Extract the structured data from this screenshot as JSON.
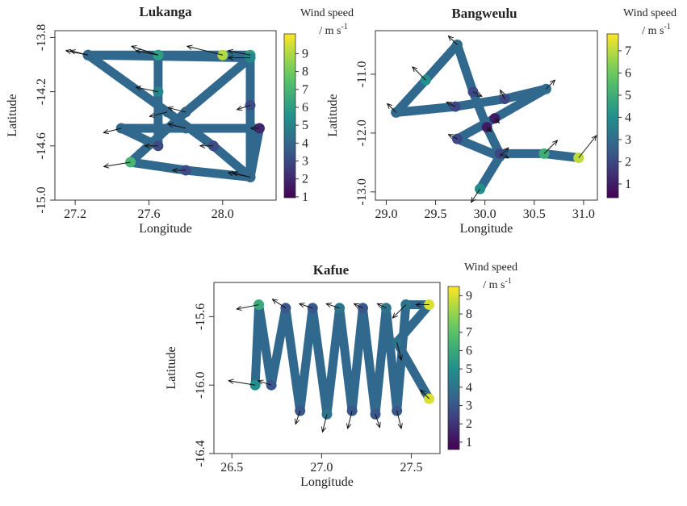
{
  "chart_data": [
    {
      "type": "scatter",
      "title": "Lukanga",
      "x_label": "Longitude",
      "y_label": "Latitude",
      "colormap": "viridis",
      "xlim": [
        27.09,
        28.29
      ],
      "ylim": [
        -15.0,
        -13.75
      ],
      "xticks": [
        27.2,
        27.6,
        {
          "value": 28,
          "label": "28.0"
        }
      ],
      "yticks": [
        -13.8,
        -14.2,
        -14.6,
        {
          "value": -15,
          "label": "-15.0"
        }
      ],
      "x": [
        27.27,
        27.65,
        28.0,
        28.15,
        28.15,
        28.15,
        27.8,
        27.5,
        27.8,
        28.15,
        27.27,
        27.7,
        27.95,
        28.15,
        28.2,
        27.8,
        27.45,
        27.65,
        27.65,
        27.65
      ],
      "y": [
        -13.93,
        -13.93,
        -13.93,
        -13.93,
        -14.3,
        -14.83,
        -14.78,
        -14.72,
        -14.35,
        -13.95,
        -13.93,
        -14.35,
        -14.6,
        -14.83,
        -14.47,
        -14.47,
        -14.47,
        -14.6,
        -14.2,
        -13.93
      ],
      "wind": [
        5,
        6,
        9,
        6,
        3,
        5,
        3,
        7,
        4,
        5,
        4,
        4,
        3,
        4,
        2,
        4,
        4,
        3,
        5,
        6
      ],
      "u": [
        -5,
        -5,
        -8,
        -5,
        -3,
        -5,
        -3,
        -6,
        -4,
        -5,
        -4,
        -4,
        -3,
        -4,
        -2,
        -4,
        -4,
        -3,
        -5,
        -6
      ],
      "v": [
        1,
        1,
        2,
        1,
        -1,
        1,
        0,
        -1,
        1,
        0,
        1,
        -1,
        0,
        1,
        0,
        1,
        -1,
        0,
        1,
        2
      ],
      "colorbar": {
        "label": "Wind speed",
        "unit": "/ m s",
        "unit_exponent": "-1",
        "lim": [
          0.95,
          10.1
        ],
        "ticks": [
          1,
          2,
          3,
          4,
          5,
          6,
          7,
          8,
          9
        ]
      }
    },
    {
      "type": "scatter",
      "title": "Bangweulu",
      "x_label": "Longitude",
      "y_label": "Latitude",
      "colormap": "viridis",
      "xlim": [
        28.89,
        31.14
      ],
      "ylim": [
        -13.14,
        -10.26
      ],
      "xticks": [
        {
          "value": 29,
          "label": "29.0"
        },
        29.5,
        {
          "value": 30,
          "label": "30.0"
        },
        30.5,
        {
          "value": 31,
          "label": "31.0"
        }
      ],
      "yticks": [
        {
          "value": -11,
          "label": "-11.0"
        },
        {
          "value": -12,
          "label": "-12.0"
        },
        {
          "value": -13,
          "label": "-13.0"
        }
      ],
      "x": [
        29.95,
        30.15,
        29.72,
        30.1,
        30.62,
        30.2,
        29.7,
        29.1,
        29.4,
        29.72,
        29.88,
        30.02,
        30.15,
        30.6,
        30.95
      ],
      "y": [
        -12.95,
        -12.4,
        -12.1,
        -11.75,
        -11.25,
        -11.42,
        -11.55,
        -11.65,
        -11.1,
        -10.5,
        -11.3,
        -11.9,
        -12.35,
        -12.35,
        -12.42
      ],
      "wind": [
        4,
        3,
        2,
        1,
        3,
        2,
        2,
        3,
        4,
        3,
        2,
        1,
        2,
        5,
        7
      ],
      "u": [
        -2,
        2,
        -2,
        1,
        2,
        -1,
        -2,
        -2,
        -3,
        -2,
        2,
        1,
        2,
        3,
        4
      ],
      "v": [
        -3,
        2,
        1,
        -1,
        2,
        2,
        1,
        2,
        3,
        2,
        -1,
        -1,
        -1,
        3,
        5
      ],
      "colorbar": {
        "label": "Wind speed",
        "unit": "/ m s",
        "unit_exponent": "-1",
        "lim": [
          0.38,
          7.76
        ],
        "ticks": [
          1,
          2,
          3,
          4,
          5,
          6,
          7
        ]
      }
    },
    {
      "type": "scatter",
      "title": "Kafue",
      "x_label": "Longitude",
      "y_label": "Latitude",
      "colormap": "viridis",
      "xlim": [
        26.4,
        27.66
      ],
      "ylim": [
        -16.4,
        -15.4
      ],
      "xticks": [
        26.5,
        {
          "value": 27,
          "label": "27.0"
        },
        27.5
      ],
      "yticks": [
        -15.6,
        {
          "value": -16,
          "label": "-16.0"
        },
        -16.4
      ],
      "x": [
        26.63,
        26.65,
        26.72,
        26.8,
        26.88,
        26.95,
        27.03,
        27.1,
        27.17,
        27.23,
        27.3,
        27.36,
        27.42,
        27.47,
        27.6,
        27.42,
        27.6
      ],
      "y": [
        -16.0,
        -15.53,
        -16.0,
        -15.55,
        -16.15,
        -15.55,
        -16.17,
        -15.55,
        -16.15,
        -15.55,
        -16.17,
        -15.55,
        -16.15,
        -15.53,
        -15.53,
        -15.75,
        -16.08
      ],
      "wind": [
        5,
        6,
        3,
        3,
        3,
        3,
        4,
        4,
        3,
        3,
        3,
        4,
        3,
        4,
        9,
        4,
        9
      ],
      "u": [
        -6,
        -5,
        -3,
        -3,
        -1,
        -3,
        -1,
        -3,
        -1,
        -2,
        1,
        -2,
        1,
        -3,
        -3,
        1,
        -2
      ],
      "v": [
        1,
        -1,
        1,
        2,
        -3,
        1,
        -4,
        1,
        -4,
        1,
        -3,
        1,
        -4,
        -3,
        0,
        -4,
        2
      ],
      "colorbar": {
        "label": "Wind speed",
        "unit": "/ m s",
        "unit_exponent": "-1",
        "lim": [
          0.6,
          9.5
        ],
        "ticks": [
          1,
          2,
          3,
          4,
          5,
          6,
          7,
          8,
          9
        ]
      }
    }
  ]
}
